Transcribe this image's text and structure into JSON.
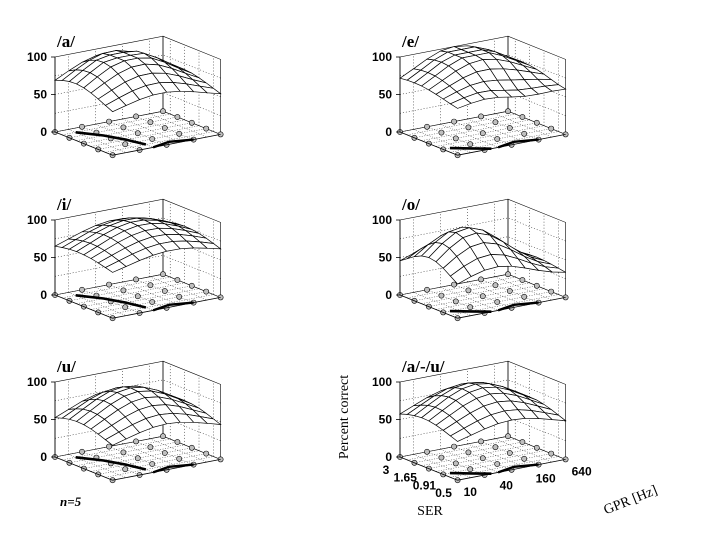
{
  "figure": {
    "sample_size_label": "n=5",
    "z_axis_label": "Percent correct",
    "x_axis_label": "SER",
    "y_axis_label": "GPR [Hz]",
    "z_ticks": [
      "0",
      "50",
      "100"
    ],
    "ser_ticks": [
      "3",
      "1.65",
      "0.91",
      "0.5"
    ],
    "gpr_ticks": [
      "10",
      "40",
      "160",
      "640"
    ]
  },
  "chart_data": [
    {
      "type": "surface",
      "title": "/a/",
      "ylim": [
        0,
        100
      ],
      "xlabel": "",
      "ylabel": ""
    },
    {
      "type": "surface",
      "title": "/e/",
      "ylim": [
        0,
        100
      ],
      "xlabel": "",
      "ylabel": ""
    },
    {
      "type": "surface",
      "title": "/i/",
      "ylim": [
        0,
        100
      ],
      "xlabel": "",
      "ylabel": ""
    },
    {
      "type": "surface",
      "title": "/o/",
      "ylim": [
        0,
        100
      ],
      "xlabel": "",
      "ylabel": ""
    },
    {
      "type": "surface",
      "title": "/u/",
      "ylim": [
        0,
        100
      ],
      "xlabel": "",
      "ylabel": ""
    },
    {
      "type": "surface",
      "title": "/a/-/u/",
      "ylim": [
        0,
        100
      ],
      "xlabel": "SER",
      "ylabel": "GPR [Hz]"
    }
  ],
  "colors": {
    "surface_fill": "#ffffff",
    "lines": "#000000",
    "marker_fill": "#bfbfbf"
  }
}
